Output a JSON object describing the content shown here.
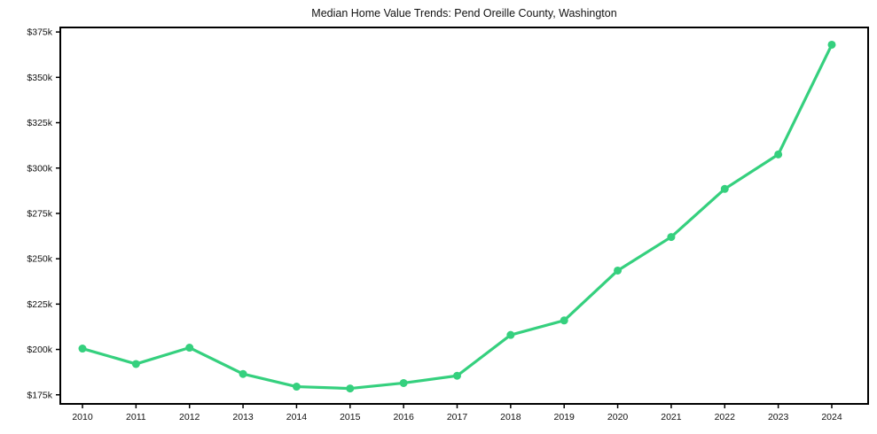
{
  "page": {
    "background_color": "#ffffff",
    "text_color": "#111111"
  },
  "chart": {
    "accent_color": "#35d07e",
    "spine_color": "#000000",
    "tick_color": "#000000"
  },
  "chart_data": {
    "type": "line",
    "title": "Median Home Value Trends: Pend Oreille County, Washington",
    "categories": [
      "2010",
      "2011",
      "2012",
      "2013",
      "2014",
      "2015",
      "2016",
      "2017",
      "2018",
      "2019",
      "2020",
      "2021",
      "2022",
      "2023",
      "2024"
    ],
    "series": [
      {
        "name": "Median Home Value",
        "values": [
          200500,
          192000,
          201000,
          186500,
          179500,
          178500,
          181500,
          185500,
          208000,
          216000,
          243500,
          262000,
          288500,
          307500,
          368000
        ]
      }
    ],
    "xlabel": "",
    "ylabel": "",
    "ylim": [
      170000,
      377500
    ],
    "ytick_values": [
      175000,
      200000,
      225000,
      250000,
      275000,
      300000,
      325000,
      350000,
      375000
    ],
    "ytick_labels": [
      "$175k",
      "$200k",
      "$225k",
      "$250k",
      "$275k",
      "$300k",
      "$325k",
      "$350k",
      "$375k"
    ],
    "grid": false,
    "legend_position": "none",
    "line_color": "#35d07e",
    "marker": "circle"
  }
}
